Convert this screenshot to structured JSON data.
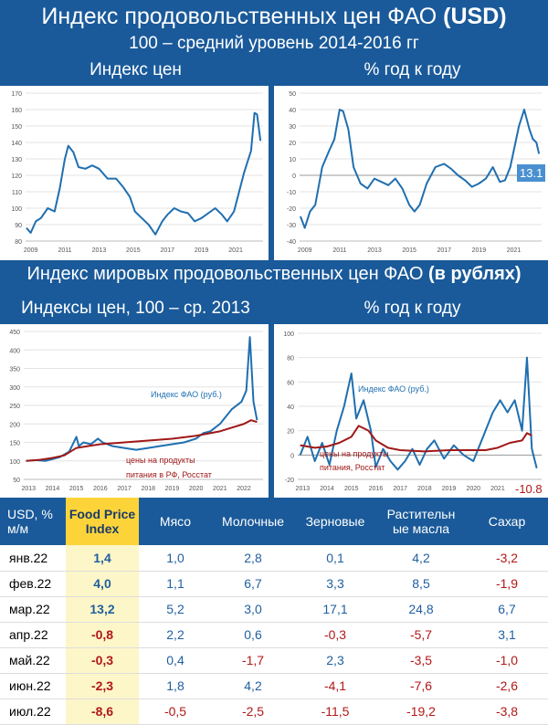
{
  "header": {
    "title_main": "Индекс продовольственных цен ФАО ",
    "title_bold": "(USD)",
    "subtitle": "100 – средний уровень 2014-2016 гг",
    "section2_main": "Индекс мировых продовольственных цен ФАО ",
    "section2_bold": "(в рублях)"
  },
  "panels": {
    "p1_title": "Индекс цен",
    "p2_title": "% год к году",
    "p3_title": "Индексы цен, 100 – ср. 2013",
    "p4_title": "% год к году",
    "p2_last_value": "13.1",
    "p4_last_value": "-10.8"
  },
  "chart_data": [
    {
      "type": "line",
      "ylim": [
        80,
        170
      ],
      "yticks": [
        "80",
        "90",
        "100",
        "110",
        "120",
        "130",
        "140",
        "150",
        "160",
        "170"
      ],
      "xticks": [
        "2009",
        "2011",
        "2013",
        "2015",
        "2017",
        "2019",
        "2021"
      ],
      "x_range": [
        2008.7,
        2022.6
      ],
      "series": [
        {
          "color": "#1f6fb0",
          "x": [
            2008.75,
            2009,
            2009.3,
            2009.6,
            2010,
            2010.4,
            2010.7,
            2011,
            2011.2,
            2011.5,
            2011.8,
            2012.2,
            2012.6,
            2013,
            2013.5,
            2014,
            2014.4,
            2014.8,
            2015.1,
            2015.5,
            2015.9,
            2016.3,
            2016.7,
            2017,
            2017.4,
            2017.8,
            2018.2,
            2018.6,
            2019,
            2019.4,
            2019.8,
            2020.2,
            2020.5,
            2020.9,
            2021.2,
            2021.5,
            2021.9,
            2022.1,
            2022.25,
            2022.45
          ],
          "y": [
            88,
            85,
            92,
            94,
            100,
            98,
            112,
            130,
            138,
            134,
            125,
            124,
            126,
            124,
            118,
            118,
            113,
            107,
            98,
            94,
            90,
            84,
            92,
            96,
            100,
            98,
            97,
            92,
            94,
            97,
            100,
            96,
            92,
            98,
            110,
            122,
            135,
            158,
            157,
            141
          ]
        }
      ]
    },
    {
      "type": "line",
      "ylim": [
        -40,
        50
      ],
      "yticks": [
        "-40",
        "-30",
        "-20",
        "-10",
        "0",
        "10",
        "20",
        "30",
        "40",
        "50"
      ],
      "xticks": [
        "2009",
        "2011",
        "2013",
        "2015",
        "2017",
        "2019",
        "2021"
      ],
      "x_range": [
        2008.7,
        2022.6
      ],
      "series": [
        {
          "color": "#1f6fb0",
          "x": [
            2008.75,
            2009,
            2009.3,
            2009.6,
            2010,
            2010.4,
            2010.7,
            2011,
            2011.2,
            2011.5,
            2011.8,
            2012.2,
            2012.6,
            2013,
            2013.4,
            2013.8,
            2014.2,
            2014.6,
            2015,
            2015.3,
            2015.6,
            2016,
            2016.5,
            2017,
            2017.4,
            2017.8,
            2018.2,
            2018.6,
            2019,
            2019.4,
            2019.8,
            2020.2,
            2020.5,
            2020.8,
            2021,
            2021.3,
            2021.6,
            2021.9,
            2022.1,
            2022.3,
            2022.45
          ],
          "y": [
            -25,
            -32,
            -22,
            -18,
            5,
            15,
            22,
            40,
            39,
            28,
            5,
            -5,
            -8,
            -2,
            -4,
            -6,
            -2,
            -8,
            -18,
            -22,
            -18,
            -5,
            5,
            7,
            4,
            0,
            -3,
            -7,
            -5,
            -2,
            5,
            -4,
            -3,
            5,
            15,
            30,
            40,
            28,
            22,
            20,
            13.1
          ]
        }
      ]
    },
    {
      "type": "line",
      "ylim": [
        50,
        450
      ],
      "yticks": [
        "50",
        "100",
        "150",
        "200",
        "250",
        "300",
        "350",
        "400",
        "450"
      ],
      "xticks": [
        "2013",
        "2014",
        "2015",
        "2016",
        "2017",
        "2018",
        "2019",
        "2020",
        "2021",
        "2022"
      ],
      "x_range": [
        2012.8,
        2022.8
      ],
      "annotations": [
        "Индекс ФАО (руб.)",
        "цены на продукты",
        "питания в РФ, Росстат"
      ],
      "series": [
        {
          "color": "#1f6fb0",
          "x": [
            2012.9,
            2013.3,
            2013.7,
            2014,
            2014.3,
            2014.7,
            2015,
            2015.1,
            2015.3,
            2015.6,
            2015.9,
            2016.1,
            2016.5,
            2017,
            2017.5,
            2018,
            2018.5,
            2019,
            2019.5,
            2020,
            2020.3,
            2020.6,
            2021,
            2021.5,
            2021.9,
            2022.1,
            2022.25,
            2022.4,
            2022.55
          ],
          "y": [
            100,
            102,
            100,
            105,
            110,
            125,
            165,
            140,
            150,
            145,
            160,
            150,
            140,
            135,
            130,
            135,
            140,
            145,
            150,
            160,
            175,
            180,
            200,
            240,
            260,
            290,
            435,
            260,
            210
          ]
        },
        {
          "color": "#a01818",
          "x": [
            2012.9,
            2013.5,
            2014,
            2014.5,
            2015,
            2015.5,
            2016,
            2017,
            2018,
            2019,
            2020,
            2021,
            2021.5,
            2022,
            2022.3,
            2022.55
          ],
          "y": [
            100,
            103,
            108,
            115,
            135,
            140,
            145,
            150,
            155,
            160,
            168,
            180,
            190,
            200,
            210,
            205
          ]
        }
      ]
    },
    {
      "type": "line",
      "ylim": [
        -20,
        100
      ],
      "yticks": [
        "-20",
        "0",
        "20",
        "40",
        "60",
        "80",
        "100"
      ],
      "xticks": [
        "2013",
        "2014",
        "2015",
        "2016",
        "2017",
        "2018",
        "2019",
        "2020",
        "2021",
        "2022"
      ],
      "x_range": [
        2012.8,
        2022.8
      ],
      "annotations": [
        "Индекс ФАО (руб.)",
        "цены на продукты",
        "питания, Росстат"
      ],
      "series": [
        {
          "color": "#1f6fb0",
          "x": [
            2012.9,
            2013.2,
            2013.5,
            2013.8,
            2014.1,
            2014.4,
            2014.7,
            2015,
            2015.2,
            2015.5,
            2015.8,
            2016,
            2016.3,
            2016.6,
            2016.9,
            2017.2,
            2017.5,
            2017.8,
            2018.1,
            2018.4,
            2018.8,
            2019.2,
            2019.6,
            2020,
            2020.4,
            2020.8,
            2021.1,
            2021.4,
            2021.7,
            2022,
            2022.2,
            2022.4,
            2022.6
          ],
          "y": [
            0,
            15,
            -5,
            10,
            -8,
            20,
            40,
            67,
            30,
            45,
            20,
            -10,
            5,
            -5,
            -12,
            -5,
            5,
            -8,
            5,
            12,
            -3,
            8,
            0,
            -5,
            15,
            35,
            45,
            35,
            45,
            20,
            80,
            5,
            -10.8
          ]
        },
        {
          "color": "#a01818",
          "x": [
            2012.9,
            2013.5,
            2014,
            2014.5,
            2015,
            2015.3,
            2015.7,
            2016,
            2016.5,
            2017,
            2018,
            2019,
            2020,
            2020.5,
            2021,
            2021.5,
            2022,
            2022.2,
            2022.4
          ],
          "y": [
            8,
            6,
            7,
            10,
            15,
            24,
            20,
            12,
            6,
            4,
            3,
            4,
            4,
            4,
            6,
            10,
            12,
            18,
            16
          ]
        }
      ]
    }
  ],
  "table": {
    "header": [
      "USD, % м/м",
      "Food Price Index",
      "Мясо",
      "Молочные",
      "Зерновые",
      "Растительные масла",
      "Сахар"
    ],
    "header_lines": [
      [
        "USD, %",
        "м/м"
      ],
      [
        "Food Price",
        "Index"
      ],
      [
        "Мясо"
      ],
      [
        "Молочные"
      ],
      [
        "Зерновые"
      ],
      [
        "Растительн",
        "ые масла"
      ],
      [
        "Сахар"
      ]
    ],
    "rows": [
      [
        "янв.22",
        "1,4",
        "1,0",
        "2,8",
        "0,1",
        "4,2",
        "-3,2"
      ],
      [
        "фев.22",
        "4,0",
        "1,1",
        "6,7",
        "3,3",
        "8,5",
        "-1,9"
      ],
      [
        "мар.22",
        "13,2",
        "5,2",
        "3,0",
        "17,1",
        "24,8",
        "6,7"
      ],
      [
        "апр.22",
        "-0,8",
        "2,2",
        "0,6",
        "-0,3",
        "-5,7",
        "3,1"
      ],
      [
        "май.22",
        "-0,3",
        "0,4",
        "-1,7",
        "2,3",
        "-3,5",
        "-1,0"
      ],
      [
        "июн.22",
        "-2,3",
        "1,8",
        "4,2",
        "-4,1",
        "-7,6",
        "-2,6"
      ],
      [
        "июл.22",
        "-8,6",
        "-0,5",
        "-2,5",
        "-11,5",
        "-19,2",
        "-3,8"
      ]
    ]
  }
}
